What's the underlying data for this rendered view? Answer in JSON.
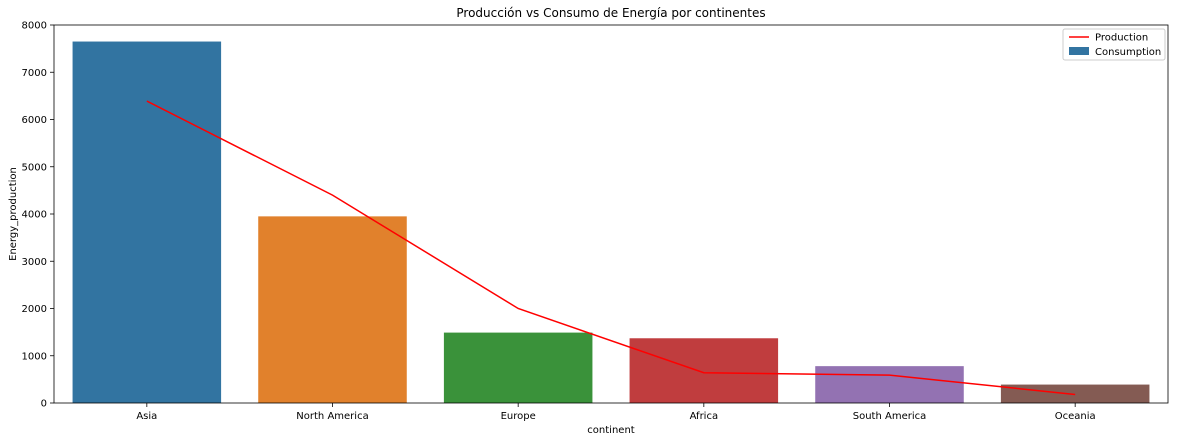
{
  "chart_data": {
    "type": "bar",
    "title": "Producción vs Consumo de Energía por continentes",
    "xlabel": "continent",
    "ylabel": "Energy_production",
    "ylim": [
      0,
      8000
    ],
    "yticks": [
      0,
      1000,
      2000,
      3000,
      4000,
      5000,
      6000,
      7000,
      8000
    ],
    "categories": [
      "Asia",
      "North America",
      "Europe",
      "Africa",
      "South America",
      "Oceania"
    ],
    "series": [
      {
        "name": "Consumption",
        "type": "bar",
        "values": [
          7650,
          3950,
          1490,
          1370,
          780,
          390
        ],
        "colors": [
          "#3274a1",
          "#e1812c",
          "#3a923a",
          "#c03d3e",
          "#9372b2",
          "#845b53"
        ]
      },
      {
        "name": "Production",
        "type": "line",
        "color": "#ff0000",
        "values": [
          6390,
          4400,
          2000,
          640,
          590,
          180
        ]
      }
    ],
    "legend": {
      "position": "top-right",
      "entries": [
        "Production",
        "Consumption"
      ]
    },
    "grid": false
  }
}
